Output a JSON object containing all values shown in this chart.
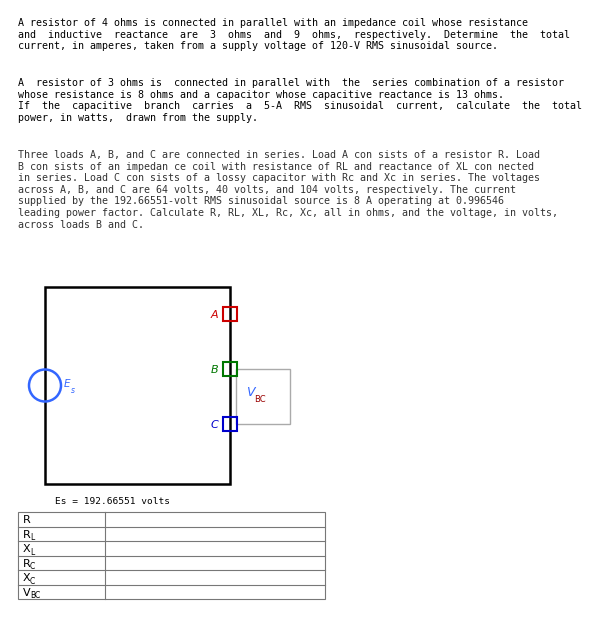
{
  "para1": "A resistor of 4 ohms is connected in parallel with an impedance coil whose resistance\nand  inductive  reactance  are  3  ohms  and  9  ohms,  respectively.  Determine  the  total\ncurrent, in amperes, taken from a supply voltage of 120-V RMS sinusoidal source.",
  "para2": "A  resistor of 3 ohms is  connected in parallel with  the  series combination of a resistor\nwhose resistance is 8 ohms and a capacitor whose capacitive reactance is 13 ohms.\nIf  the  capacitive  branch  carries  a  5-A  RMS  sinusoidal  current,  calculate  the  total\npower, in watts,  drawn from the supply.",
  "para3_line1": "Three loads A, B, and C are connected in series. Load A con sists of a resistor R. Load",
  "para3_line2": "B con sists of an impedan ce coil with resistance of RL and reactance of XL con nected",
  "para3_line3": "in series. Load C con sists of a lossy capacitor with Rc and Xc in series. The voltages",
  "para3_line4": "across A, B, and C are 64 volts, 40 volts, and 104 volts, respectively. The current",
  "para3_line5": "supplied by the 192.66551-volt RMS sinusoidal source is 8 A operating at 0.996546",
  "para3_line6": "leading power factor. Calculate R, RL, XL, Rc, Xc, all in ohms, and the voltage, in volts,",
  "para3_line7": "across loads B and C.",
  "font_size_text": 7.2,
  "font_size_table": 8.0,
  "font_size_circuit": 7.5,
  "text_color": "#000000",
  "para3_color": "#333333",
  "circuit_line_color": "#000000",
  "source_color": "#3366ff",
  "load_a_color": "#cc0000",
  "load_b_color": "#007700",
  "load_c_color": "#0000cc",
  "vbc_color": "#3366ff",
  "vbc_sub_color": "#990000",
  "vbc_bracket_color": "#aaaaaa",
  "es_label": "Es = 192.66551 volts",
  "table_rows": [
    "R",
    "RL",
    "XL",
    "Rc",
    "Xc",
    "VBC"
  ],
  "table_color": "#777777",
  "background_color": "#ffffff"
}
